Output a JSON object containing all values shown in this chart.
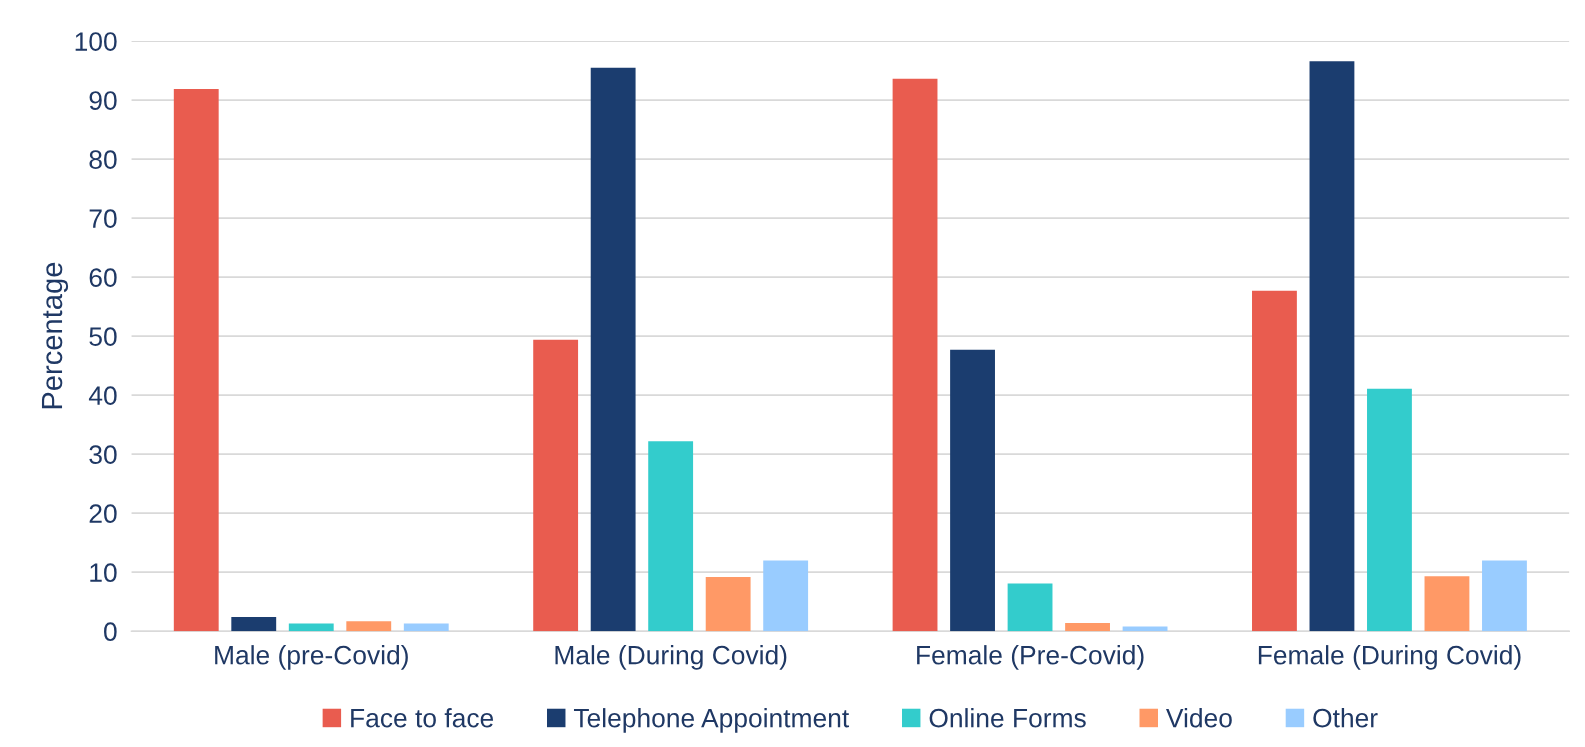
{
  "chart_data": {
    "type": "bar",
    "ylabel": "Percentage",
    "categories": [
      "Male (pre-Covid)",
      "Male (During Covid)",
      "Female (Pre-Covid)",
      "Female (During Covid)"
    ],
    "series": [
      {
        "name": "Face to face",
        "color": "#e95c4f",
        "values": [
          91.9,
          49.4,
          93.6,
          57.7
        ]
      },
      {
        "name": "Telephone Appointment",
        "color": "#1b3d6f",
        "values": [
          2.4,
          95.5,
          47.7,
          96.6
        ]
      },
      {
        "name": "Online Forms",
        "color": "#33cccc",
        "values": [
          1.3,
          32.2,
          8.1,
          41.1
        ]
      },
      {
        "name": "Video",
        "color": "#ff9966",
        "values": [
          1.7,
          9.2,
          1.4,
          9.3
        ]
      },
      {
        "name": "Other",
        "color": "#99ccff",
        "values": [
          1.3,
          12.0,
          0.8,
          12.0
        ]
      }
    ],
    "ylim": [
      0,
      100
    ],
    "yticks": [
      0,
      10,
      20,
      30,
      40,
      50,
      60,
      70,
      80,
      90,
      100
    ],
    "grid": "y",
    "legend": "bottom"
  }
}
